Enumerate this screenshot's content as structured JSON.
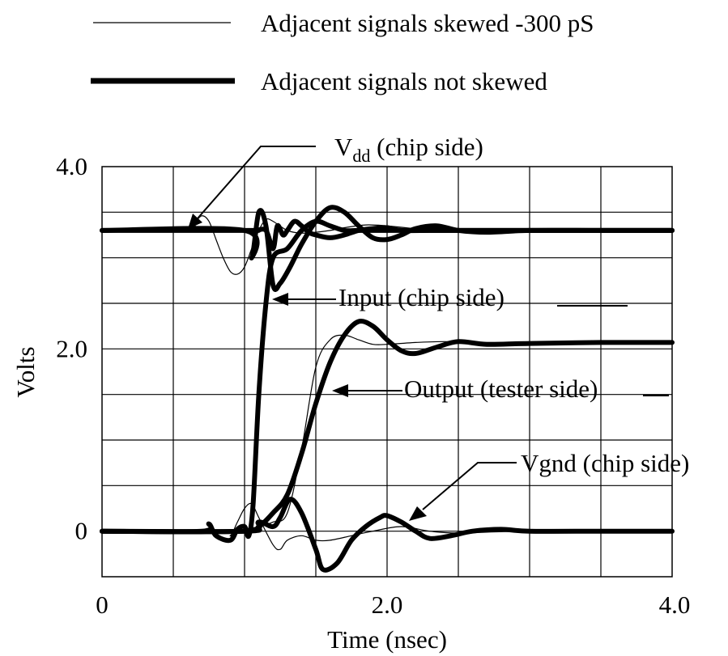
{
  "chart_data": {
    "type": "line",
    "title": "",
    "xlabel": "Time (nsec)",
    "ylabel": "Volts",
    "xlim": [
      0,
      4.0
    ],
    "ylim": [
      -0.5,
      4.0
    ],
    "x_ticks": [
      {
        "value": 0,
        "label": "0"
      },
      {
        "value": 2.0,
        "label": "2.0"
      },
      {
        "value": 4.0,
        "label": "4.0"
      }
    ],
    "y_ticks": [
      {
        "value": 4.0,
        "label": "4.0"
      },
      {
        "value": 2.0,
        "label": "2.0"
      },
      {
        "value": 0,
        "label": "0"
      }
    ],
    "grid": true,
    "legend": {
      "placement": "top",
      "entries": [
        {
          "label": "Adjacent signals skewed -300 pS",
          "style": "thin"
        },
        {
          "label": "Adjacent signals not skewed",
          "style": "thick"
        }
      ]
    },
    "annotations": [
      {
        "label": "V",
        "subscript": "dd",
        "suffix": " (chip side)",
        "x": 0.6,
        "y": 3.3
      },
      {
        "label": "Input (chip side)",
        "x": 1.2,
        "y": 2.55
      },
      {
        "label": "Output (tester side)",
        "x": 1.6,
        "y": 1.55
      },
      {
        "label": "Vgnd (chip side)",
        "x": 2.1,
        "y": 0.1
      }
    ],
    "series": [
      {
        "style": "thick",
        "color": "#000000",
        "x": [
          0,
          1.0,
          1.05,
          1.1,
          1.15,
          1.2,
          1.25,
          1.32,
          1.4,
          1.5,
          1.6,
          1.7,
          1.8,
          1.9,
          2.0,
          2.1,
          2.2,
          2.35,
          2.5,
          2.7,
          3.0,
          3.5,
          4.0
        ],
        "y": [
          3.3,
          3.3,
          3.0,
          3.5,
          3.35,
          2.7,
          2.72,
          2.9,
          3.15,
          3.4,
          3.55,
          3.5,
          3.35,
          3.22,
          3.2,
          3.25,
          3.32,
          3.35,
          3.3,
          3.28,
          3.3,
          3.3,
          3.3
        ]
      },
      {
        "style": "thick",
        "color": "#000000",
        "x": [
          0,
          1.0,
          1.08,
          1.15,
          1.2,
          1.23,
          1.27,
          1.3,
          1.35,
          1.4,
          1.45,
          1.5,
          1.6,
          1.7,
          1.8,
          1.9,
          2.0,
          2.1,
          2.3,
          2.5,
          3.0,
          3.5,
          4.0
        ],
        "y": [
          3.3,
          3.3,
          3.3,
          3.3,
          3.1,
          3.35,
          3.25,
          3.3,
          3.4,
          3.35,
          3.28,
          3.25,
          3.22,
          3.25,
          3.3,
          3.32,
          3.33,
          3.3,
          3.3,
          3.3,
          3.3,
          3.3,
          3.3
        ]
      },
      {
        "style": "thick",
        "color": "#000000",
        "x": [
          0,
          0.7,
          0.75,
          0.8,
          0.9,
          0.95,
          1.0,
          1.03,
          1.06,
          1.1,
          1.15,
          1.2,
          1.3,
          1.4,
          1.5,
          1.6,
          1.7,
          1.8,
          2.0,
          2.2,
          2.4,
          2.6,
          3.0,
          4.0
        ],
        "y": [
          0,
          0,
          0.08,
          -0.05,
          -0.1,
          0.02,
          0.05,
          -0.05,
          0.3,
          1.5,
          2.5,
          3.0,
          3.1,
          3.3,
          3.4,
          3.35,
          3.3,
          3.3,
          3.3,
          3.3,
          3.3,
          3.3,
          3.3,
          3.3
        ]
      },
      {
        "style": "thick",
        "color": "#000000",
        "x": [
          0,
          1.0,
          1.1,
          1.2,
          1.3,
          1.4,
          1.5,
          1.6,
          1.7,
          1.8,
          1.9,
          2.0,
          2.1,
          2.2,
          2.35,
          2.5,
          2.7,
          3.0,
          3.5,
          4.0
        ],
        "y": [
          0,
          0,
          0.05,
          0.2,
          0.4,
          0.85,
          1.4,
          1.85,
          2.15,
          2.3,
          2.25,
          2.1,
          1.98,
          1.95,
          2.02,
          2.08,
          2.05,
          2.06,
          2.07,
          2.07
        ]
      },
      {
        "style": "thick",
        "color": "#000000",
        "x": [
          0,
          1.0,
          1.1,
          1.2,
          1.25,
          1.32,
          1.4,
          1.5,
          1.55,
          1.65,
          1.75,
          1.85,
          1.95,
          2.0,
          2.1,
          2.2,
          2.3,
          2.45,
          2.6,
          2.8,
          3.0,
          3.5,
          4.0
        ],
        "y": [
          0,
          0,
          0.1,
          0.05,
          0.15,
          0.35,
          0.2,
          -0.2,
          -0.42,
          -0.35,
          -0.1,
          0.05,
          0.15,
          0.17,
          0.1,
          0.0,
          -0.08,
          -0.05,
          0.0,
          0.02,
          0.0,
          0.0,
          0.0
        ]
      },
      {
        "style": "thin",
        "color": "#000000",
        "x": [
          0,
          0.6,
          0.65,
          0.7,
          0.75,
          0.8,
          0.85,
          0.9,
          0.95,
          1.0,
          1.05,
          1.1,
          1.15,
          1.2,
          1.3,
          1.4,
          1.5,
          1.6,
          1.7,
          1.85,
          2.0,
          2.2,
          2.5,
          3.0,
          4.0
        ],
        "y": [
          3.3,
          3.3,
          3.38,
          3.46,
          3.4,
          3.2,
          3.0,
          2.85,
          2.82,
          2.9,
          3.1,
          3.3,
          3.42,
          3.4,
          3.3,
          3.27,
          3.28,
          3.3,
          3.33,
          3.36,
          3.35,
          3.32,
          3.3,
          3.3,
          3.3
        ]
      },
      {
        "style": "thin",
        "color": "#000000",
        "x": [
          0,
          0.85,
          0.9,
          0.95,
          1.0,
          1.05,
          1.1,
          1.2,
          1.25,
          1.3,
          1.4,
          1.5,
          1.6,
          1.75,
          1.9,
          2.1,
          2.3,
          2.5,
          3.0,
          4.0
        ],
        "y": [
          0,
          0,
          -0.05,
          0.1,
          0.25,
          0.3,
          0.15,
          -0.15,
          -0.2,
          -0.1,
          -0.05,
          -0.1,
          -0.1,
          -0.05,
          0.0,
          0.05,
          0.0,
          -0.02,
          0.0,
          0.0
        ]
      },
      {
        "style": "thin",
        "color": "#000000",
        "x": [
          0,
          0.9,
          1.0,
          1.1,
          1.2,
          1.3,
          1.4,
          1.5,
          1.6,
          1.7,
          1.8,
          1.9,
          2.0,
          2.2,
          2.4,
          2.6,
          3.0,
          4.0
        ],
        "y": [
          0,
          0,
          0.02,
          0.05,
          0.1,
          0.2,
          0.9,
          1.8,
          2.1,
          2.15,
          2.1,
          2.05,
          2.05,
          2.07,
          2.08,
          2.07,
          2.07,
          2.07
        ]
      }
    ]
  }
}
